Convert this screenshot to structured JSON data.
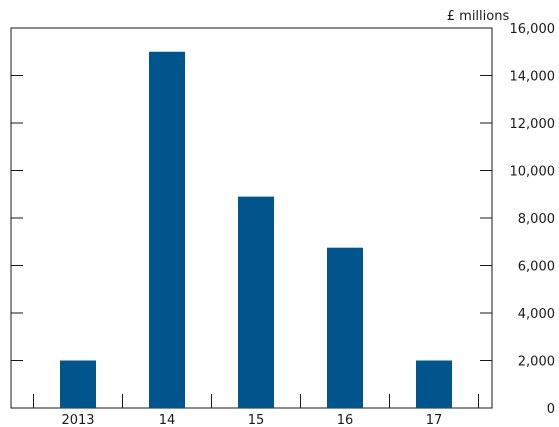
{
  "chart_data": {
    "type": "bar",
    "unit_label": "£ millions",
    "categories": [
      "2013",
      "14",
      "15",
      "16",
      "17"
    ],
    "values": [
      2000,
      15000,
      8900,
      6750,
      2000
    ],
    "ylim": [
      0,
      16000
    ],
    "yticks": [
      "0",
      "2,000",
      "4,000",
      "6,000",
      "8,000",
      "10,000",
      "12,000",
      "14,000",
      "16,000"
    ],
    "ytick_values": [
      0,
      2000,
      4000,
      6000,
      8000,
      10000,
      12000,
      14000,
      16000
    ],
    "y_axis_position": "right",
    "grid": false,
    "bar_color": "#00558c"
  }
}
